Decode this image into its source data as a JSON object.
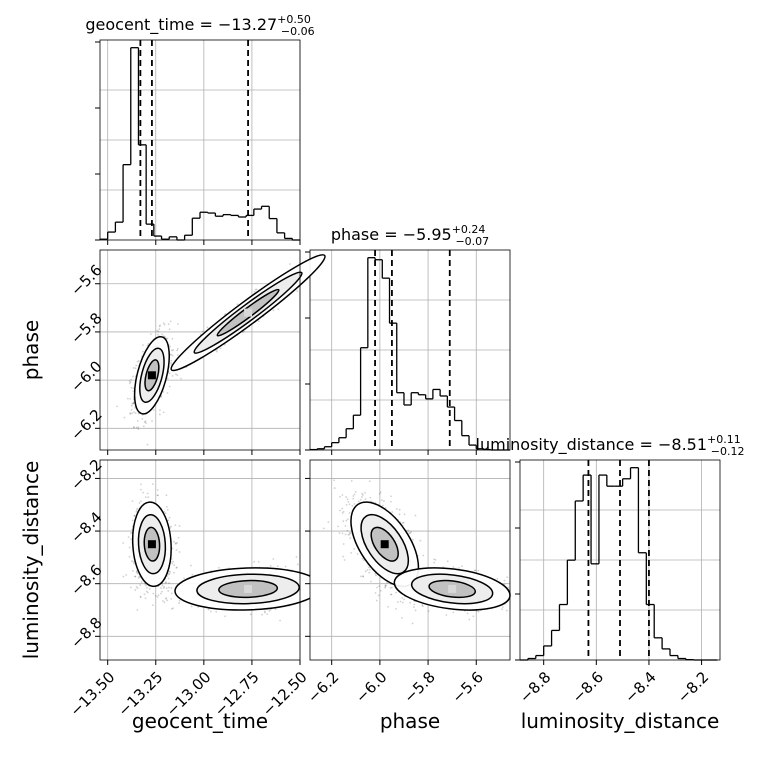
{
  "chart_data": {
    "type": "corner",
    "parameters": [
      "geocent_time",
      "phase",
      "luminosity_distance"
    ],
    "axis_ranges": {
      "geocent_time": [
        -13.54,
        -12.5
      ],
      "phase": [
        -6.29,
        -5.46
      ],
      "luminosity_distance": [
        -8.89,
        -8.13
      ]
    },
    "ticks": {
      "geocent_time": [
        "−13.50",
        "−13.25",
        "−13.00",
        "−12.75",
        "−12.50"
      ],
      "phase": [
        "−6.2",
        "−6.0",
        "−5.8",
        "−5.6"
      ],
      "luminosity_distance": [
        "−8.8",
        "−8.6",
        "−8.4",
        "−8.2"
      ]
    },
    "tick_values": {
      "geocent_time": [
        -13.5,
        -13.25,
        -13.0,
        -12.75,
        -12.5
      ],
      "phase": [
        -6.2,
        -6.0,
        -5.8,
        -5.6
      ],
      "luminosity_distance": [
        -8.8,
        -8.6,
        -8.4,
        -8.2
      ]
    },
    "titles": {
      "geocent_time": {
        "prefix": "geocent_time = −13.27",
        "plus": "+0.50",
        "minus": "−0.06"
      },
      "phase": {
        "prefix": "phase = −5.95",
        "plus": "+0.24",
        "minus": "−0.07"
      },
      "luminosity_distance": {
        "prefix": "luminosity_distance = −8.51",
        "plus": "+0.11",
        "minus": "−0.12"
      }
    },
    "quantiles": {
      "geocent_time": [
        -13.33,
        -13.27,
        -12.77
      ],
      "phase": [
        -6.02,
        -5.95,
        -5.71
      ],
      "luminosity_distance": [
        -8.63,
        -8.51,
        -8.4
      ]
    },
    "histograms": {
      "geocent_time": {
        "edges": [
          -13.54,
          -13.5,
          -13.46,
          -13.42,
          -13.38,
          -13.34,
          -13.3,
          -13.26,
          -13.22,
          -13.18,
          -13.14,
          -13.1,
          -13.06,
          -13.02,
          -12.98,
          -12.94,
          -12.9,
          -12.86,
          -12.82,
          -12.78,
          -12.74,
          -12.7,
          -12.66,
          -12.62,
          -12.58,
          -12.54,
          -12.5
        ],
        "counts": [
          2,
          20,
          45,
          190,
          485,
          240,
          40,
          10,
          2,
          8,
          0,
          12,
          55,
          70,
          68,
          60,
          64,
          62,
          58,
          62,
          78,
          85,
          54,
          18,
          4,
          0
        ]
      },
      "phase": {
        "edges": [
          -6.29,
          -6.26,
          -6.23,
          -6.2,
          -6.17,
          -6.14,
          -6.11,
          -6.08,
          -6.05,
          -6.02,
          -5.99,
          -5.96,
          -5.93,
          -5.9,
          -5.87,
          -5.84,
          -5.81,
          -5.78,
          -5.75,
          -5.72,
          -5.69,
          -5.66,
          -5.63,
          -5.6,
          -5.57,
          -5.54,
          -5.51,
          -5.48,
          -5.46
        ],
        "counts": [
          1,
          3,
          8,
          18,
          30,
          52,
          85,
          250,
          470,
          465,
          420,
          310,
          140,
          110,
          140,
          135,
          125,
          148,
          132,
          105,
          72,
          35,
          12,
          3,
          1,
          0,
          0,
          0
        ]
      },
      "luminosity_distance": {
        "edges": [
          -8.89,
          -8.86,
          -8.83,
          -8.8,
          -8.77,
          -8.74,
          -8.71,
          -8.68,
          -8.65,
          -8.62,
          -8.59,
          -8.56,
          -8.53,
          -8.5,
          -8.47,
          -8.44,
          -8.41,
          -8.38,
          -8.35,
          -8.32,
          -8.29,
          -8.26,
          -8.23,
          -8.2,
          -8.17,
          -8.14
        ],
        "counts": [
          0,
          4,
          12,
          38,
          80,
          150,
          270,
          430,
          500,
          260,
          500,
          470,
          470,
          490,
          520,
          290,
          150,
          60,
          30,
          12,
          4,
          1,
          0,
          0,
          0
        ]
      }
    },
    "joint_modes": [
      {
        "pair": [
          "geocent_time",
          "phase"
        ],
        "clusters": [
          {
            "center": [
              -13.27,
              -5.98
            ],
            "spread": [
              0.045,
              0.08
            ],
            "corr": 0.5,
            "weight": 0.62
          },
          {
            "center": [
              -12.77,
              -5.72
            ],
            "spread": [
              0.2,
              0.12
            ],
            "corr": 0.97,
            "weight": 0.38
          }
        ]
      },
      {
        "pair": [
          "geocent_time",
          "luminosity_distance"
        ],
        "clusters": [
          {
            "center": [
              -13.27,
              -8.45
            ],
            "spread": [
              0.05,
              0.08
            ],
            "corr": -0.1,
            "weight": 0.62
          },
          {
            "center": [
              -12.77,
              -8.62
            ],
            "spread": [
              0.19,
              0.04
            ],
            "corr": 0.1,
            "weight": 0.38
          }
        ]
      },
      {
        "pair": [
          "phase",
          "luminosity_distance"
        ],
        "clusters": [
          {
            "center": [
              -5.98,
              -8.45
            ],
            "spread": [
              0.07,
              0.08
            ],
            "corr": -0.55,
            "weight": 0.62
          },
          {
            "center": [
              -5.7,
              -8.62
            ],
            "spread": [
              0.12,
              0.04
            ],
            "corr": -0.3,
            "weight": 0.38
          }
        ]
      }
    ],
    "grid": true,
    "labels": {
      "x": [
        "geocent_time",
        "phase",
        "luminosity_distance"
      ],
      "y": [
        "phase",
        "luminosity_distance"
      ]
    }
  }
}
